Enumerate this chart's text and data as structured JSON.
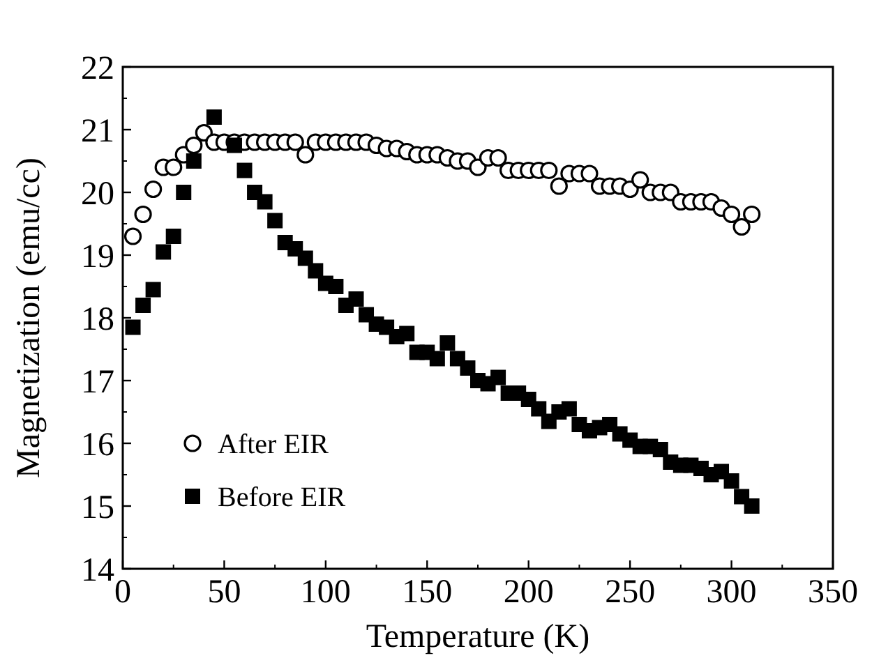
{
  "chart_data": {
    "type": "scatter",
    "xlabel": "Temperature (K)",
    "ylabel": "Magnetization (emu/cc)",
    "xlim": [
      0,
      350
    ],
    "xticks": [
      0,
      50,
      100,
      150,
      200,
      250,
      300,
      350
    ],
    "ylim": [
      14,
      22
    ],
    "yticks": [
      14,
      15,
      16,
      17,
      18,
      19,
      20,
      21,
      22
    ],
    "legend": "bottom left",
    "grid": false,
    "series": [
      {
        "name": "After EIR",
        "color": "#000000",
        "marker": "circle",
        "x": [
          5,
          10,
          15,
          20,
          25,
          30,
          35,
          40,
          45,
          50,
          55,
          60,
          65,
          70,
          75,
          80,
          85,
          90,
          95,
          100,
          105,
          110,
          115,
          120,
          125,
          130,
          135,
          140,
          145,
          150,
          155,
          160,
          165,
          170,
          175,
          180,
          185,
          190,
          195,
          200,
          205,
          210,
          215,
          220,
          225,
          230,
          235,
          240,
          245,
          250,
          255,
          260,
          265,
          270,
          275,
          280,
          285,
          290,
          295,
          300,
          305,
          310
        ],
        "values": [
          19.3,
          19.65,
          20.05,
          20.4,
          20.4,
          20.6,
          20.75,
          20.95,
          20.8,
          20.8,
          20.8,
          20.8,
          20.8,
          20.8,
          20.8,
          20.8,
          20.8,
          20.6,
          20.8,
          20.8,
          20.8,
          20.8,
          20.8,
          20.8,
          20.75,
          20.7,
          20.7,
          20.65,
          20.6,
          20.6,
          20.6,
          20.55,
          20.5,
          20.5,
          20.4,
          20.55,
          20.55,
          20.35,
          20.35,
          20.35,
          20.35,
          20.35,
          20.1,
          20.3,
          20.3,
          20.3,
          20.1,
          20.1,
          20.1,
          20.05,
          20.2,
          20.0,
          20.0,
          20.0,
          19.85,
          19.85,
          19.85,
          19.85,
          19.75,
          19.65,
          19.45,
          19.65
        ]
      },
      {
        "name": "Before EIR",
        "color": "#000000",
        "marker": "square",
        "x": [
          5,
          10,
          15,
          20,
          25,
          30,
          35,
          45,
          55,
          60,
          65,
          70,
          75,
          80,
          85,
          90,
          95,
          100,
          105,
          110,
          115,
          120,
          125,
          130,
          135,
          140,
          145,
          150,
          155,
          160,
          165,
          170,
          175,
          180,
          185,
          190,
          195,
          200,
          205,
          210,
          215,
          220,
          225,
          230,
          235,
          240,
          245,
          250,
          255,
          260,
          265,
          270,
          275,
          280,
          285,
          290,
          295,
          300,
          305,
          310
        ],
        "values": [
          17.85,
          18.2,
          18.45,
          19.05,
          19.3,
          20.0,
          20.5,
          21.2,
          20.75,
          20.35,
          20.0,
          19.85,
          19.55,
          19.2,
          19.1,
          18.95,
          18.75,
          18.55,
          18.5,
          18.2,
          18.3,
          18.05,
          17.9,
          17.85,
          17.7,
          17.75,
          17.45,
          17.45,
          17.35,
          17.6,
          17.35,
          17.2,
          17.0,
          16.95,
          17.05,
          16.8,
          16.8,
          16.7,
          16.55,
          16.35,
          16.5,
          16.55,
          16.3,
          16.2,
          16.25,
          16.3,
          16.15,
          16.05,
          15.95,
          15.95,
          15.9,
          15.7,
          15.65,
          15.65,
          15.6,
          15.5,
          15.55,
          15.4,
          15.15,
          15.0
        ]
      }
    ]
  }
}
